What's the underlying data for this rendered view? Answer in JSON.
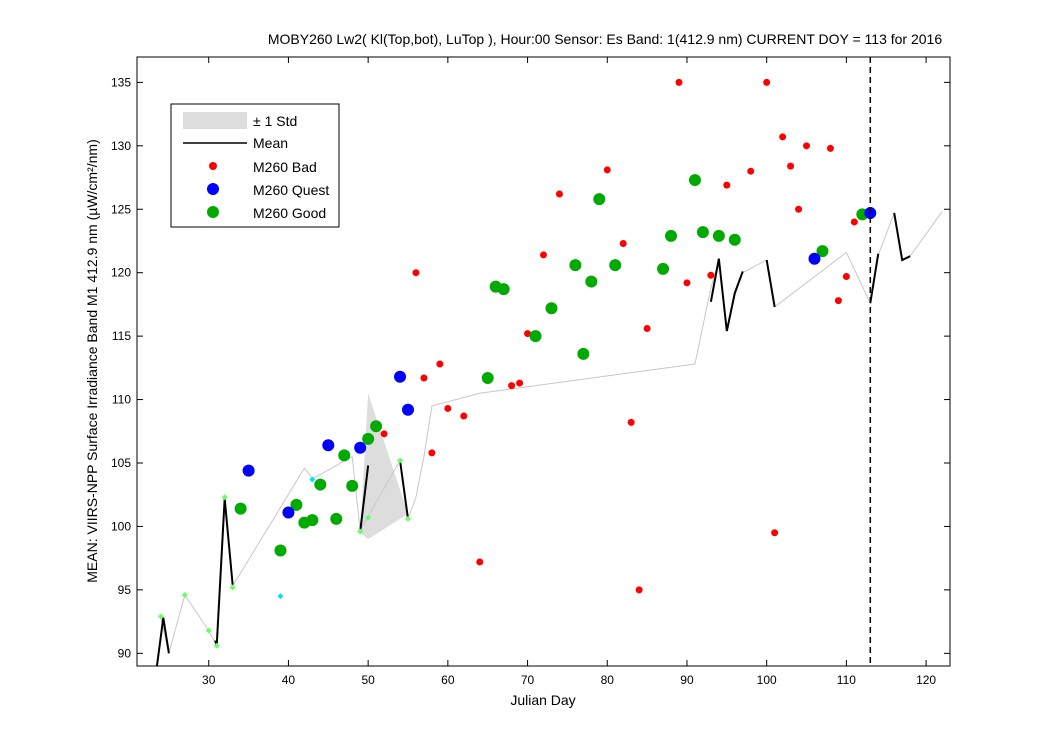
{
  "chart_data": {
    "type": "scatter",
    "title": "MOBY260   Lw2( Kl(Top,bot), LuTop ),   Hour:00 Sensor: Es Band: 1(412.9 nm)   CURRENT DOY = 113 for 2016",
    "xlabel": "Julian Day",
    "ylabel": "MEAN: VIIRS-NPP Surface Irradiance Band M1 412.9 nm (µW/cm²/nm)",
    "xlim": [
      21,
      123
    ],
    "ylim": [
      89,
      137
    ],
    "xticks": [
      30,
      40,
      50,
      60,
      70,
      80,
      90,
      100,
      110,
      120
    ],
    "yticks": [
      90,
      95,
      100,
      105,
      110,
      115,
      120,
      125,
      130,
      135
    ],
    "current_doy": 113,
    "grid": false,
    "legend_position": "top-left",
    "legend": [
      {
        "key": "std",
        "label": "± 1 Std",
        "color": "#dddddd"
      },
      {
        "key": "mean",
        "label": "Mean",
        "color": "#000000"
      },
      {
        "key": "bad",
        "label": "M260 Bad",
        "color": "#ff0000"
      },
      {
        "key": "quest",
        "label": "M260 Quest",
        "color": "#0000ff"
      },
      {
        "key": "good",
        "label": "M260 Good",
        "color": "#00aa00"
      }
    ],
    "std_band": [
      {
        "x": 49,
        "upper": 99.5,
        "lower": 99.5
      },
      {
        "x": 50,
        "upper": 110.5,
        "lower": 99.0
      },
      {
        "x": 55,
        "upper": 101.0,
        "lower": 101.0
      }
    ],
    "thin_line": [
      [
        24,
        92.8
      ],
      [
        25,
        90.0
      ],
      [
        27,
        94.6
      ],
      [
        30,
        91.8
      ],
      [
        31,
        90.6
      ],
      [
        32,
        102.2
      ],
      [
        33,
        95.3
      ],
      [
        42,
        104.6
      ],
      [
        43,
        103.8
      ],
      [
        44,
        104.1
      ],
      [
        48,
        105.5
      ],
      [
        49,
        99.7
      ],
      [
        50,
        100.8
      ],
      [
        54,
        105.2
      ],
      [
        55,
        100.6
      ],
      [
        56,
        102.3
      ],
      [
        57,
        105.5
      ],
      [
        58,
        109.5
      ],
      [
        64,
        110.5
      ],
      [
        91,
        112.8
      ],
      [
        93,
        118.8
      ],
      [
        94,
        120.9
      ],
      [
        95,
        115.4
      ],
      [
        96,
        118.2
      ],
      [
        97,
        120.0
      ],
      [
        100,
        121.0
      ],
      [
        101,
        117.3
      ],
      [
        110,
        121.6
      ],
      [
        113,
        117.6
      ],
      [
        114,
        121.4
      ],
      [
        116,
        124.7
      ],
      [
        117,
        121.0
      ],
      [
        118,
        121.3
      ],
      [
        122,
        124.8
      ]
    ],
    "mean_segments": [
      [
        [
          23.5,
          89.0
        ],
        [
          24.3,
          92.8
        ],
        [
          25.0,
          90.0
        ]
      ],
      [
        [
          30.8,
          91.0
        ],
        [
          31.0,
          90.6
        ],
        [
          32.0,
          102.2
        ],
        [
          33.0,
          95.4
        ]
      ],
      [
        [
          49.0,
          99.6
        ],
        [
          50.0,
          104.8
        ]
      ],
      [
        [
          54.0,
          105.2
        ],
        [
          55.0,
          100.6
        ]
      ],
      [
        [
          93.0,
          117.7
        ],
        [
          94.0,
          121.1
        ],
        [
          95.0,
          115.4
        ],
        [
          96.0,
          118.4
        ],
        [
          97.0,
          120.1
        ]
      ],
      [
        [
          100.0,
          121.0
        ],
        [
          101.0,
          117.3
        ]
      ],
      [
        [
          113.0,
          117.6
        ],
        [
          114.0,
          121.5
        ]
      ],
      [
        [
          116.0,
          124.7
        ],
        [
          117.0,
          121.0
        ],
        [
          118.0,
          121.3
        ]
      ]
    ],
    "series": [
      {
        "name": "M260 Bad",
        "key": "bad",
        "points": [
          [
            52,
            107.3
          ],
          [
            56,
            120.0
          ],
          [
            57,
            111.7
          ],
          [
            58,
            105.8
          ],
          [
            59,
            112.8
          ],
          [
            60,
            109.3
          ],
          [
            62,
            108.7
          ],
          [
            64,
            97.2
          ],
          [
            68,
            111.1
          ],
          [
            69,
            111.3
          ],
          [
            70,
            115.2
          ],
          [
            72,
            121.4
          ],
          [
            74,
            126.2
          ],
          [
            80,
            128.1
          ],
          [
            82,
            122.3
          ],
          [
            83,
            108.2
          ],
          [
            84,
            95.0
          ],
          [
            85,
            115.6
          ],
          [
            89,
            135.0
          ],
          [
            90,
            119.2
          ],
          [
            93,
            119.8
          ],
          [
            95,
            126.9
          ],
          [
            98,
            128.0
          ],
          [
            100,
            135.0
          ],
          [
            101,
            99.5
          ],
          [
            102,
            130.7
          ],
          [
            103,
            128.4
          ],
          [
            104,
            125.0
          ],
          [
            105,
            130.0
          ],
          [
            108,
            129.8
          ],
          [
            109,
            117.8
          ],
          [
            110,
            119.7
          ],
          [
            111,
            124.0
          ]
        ]
      },
      {
        "name": "M260 Quest",
        "key": "quest",
        "points": [
          [
            35,
            104.4
          ],
          [
            40,
            101.1
          ],
          [
            45,
            106.4
          ],
          [
            49,
            106.2
          ],
          [
            54,
            111.8
          ],
          [
            55,
            109.2
          ],
          [
            106,
            121.1
          ],
          [
            113,
            124.7
          ]
        ]
      },
      {
        "name": "M260 Good",
        "key": "good",
        "points": [
          [
            34,
            101.4
          ],
          [
            39,
            98.1
          ],
          [
            41,
            101.7
          ],
          [
            42,
            100.3
          ],
          [
            43,
            100.5
          ],
          [
            44,
            103.3
          ],
          [
            46,
            100.6
          ],
          [
            47,
            105.6
          ],
          [
            48,
            103.2
          ],
          [
            50,
            106.9
          ],
          [
            51,
            107.9
          ],
          [
            65,
            111.7
          ],
          [
            66,
            118.9
          ],
          [
            67,
            118.7
          ],
          [
            71,
            115.0
          ],
          [
            73,
            117.2
          ],
          [
            76,
            120.6
          ],
          [
            77,
            113.6
          ],
          [
            78,
            119.3
          ],
          [
            79,
            125.8
          ],
          [
            81,
            120.6
          ],
          [
            87,
            120.3
          ],
          [
            88,
            122.9
          ],
          [
            91,
            127.3
          ],
          [
            92,
            123.2
          ],
          [
            94,
            122.9
          ],
          [
            96,
            122.6
          ],
          [
            107,
            121.7
          ],
          [
            112,
            124.6
          ]
        ]
      },
      {
        "key": "aux_green",
        "points": [
          [
            24,
            92.9
          ],
          [
            27,
            94.6
          ],
          [
            30,
            91.8
          ],
          [
            31,
            90.6
          ],
          [
            32,
            102.3
          ],
          [
            33,
            95.2
          ],
          [
            49,
            99.6
          ],
          [
            50,
            100.7
          ],
          [
            54,
            105.2
          ],
          [
            55,
            100.6
          ]
        ]
      },
      {
        "key": "aux_cyan",
        "points": [
          [
            39,
            94.5
          ],
          [
            43,
            103.7
          ]
        ]
      }
    ]
  }
}
